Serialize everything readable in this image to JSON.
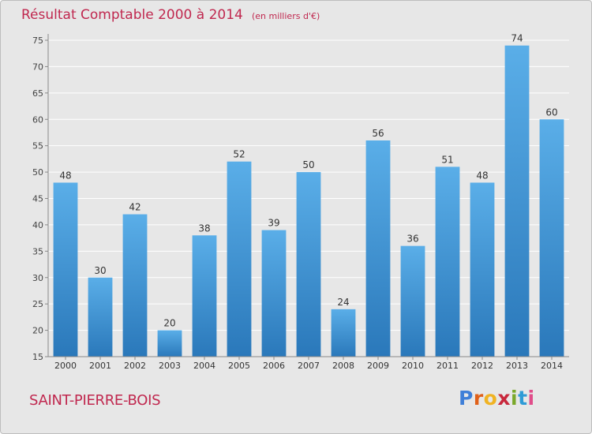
{
  "chart_data": {
    "type": "bar",
    "title": "Résultat Comptable 2000 à 2014",
    "unit": "(en milliers d'€)",
    "categories": [
      "2000",
      "2001",
      "2002",
      "2003",
      "2004",
      "2005",
      "2006",
      "2007",
      "2008",
      "2009",
      "2010",
      "2011",
      "2012",
      "2013",
      "2014"
    ],
    "values": [
      48,
      30,
      42,
      20,
      38,
      52,
      39,
      50,
      24,
      56,
      36,
      51,
      48,
      74,
      60
    ],
    "ylim": [
      15,
      75
    ],
    "yticks": [
      15,
      20,
      25,
      30,
      35,
      40,
      45,
      50,
      55,
      60,
      65,
      70,
      75
    ],
    "grid": true,
    "xlabel": "",
    "ylabel": ""
  },
  "commune": "SAINT-PIERRE-BOIS",
  "brand": {
    "letters": [
      "P",
      "r",
      "o",
      "x",
      "i",
      "t",
      "i"
    ],
    "colors": [
      "#3f7fd8",
      "#e0611a",
      "#f0b323",
      "#c8283c",
      "#7aa82a",
      "#2f9bd6",
      "#e04d8a"
    ]
  },
  "colors": {
    "bar_light": "#5aaee8",
    "bar_dark": "#2a78ba",
    "title": "#c0284f",
    "grid": "#ffffff"
  }
}
